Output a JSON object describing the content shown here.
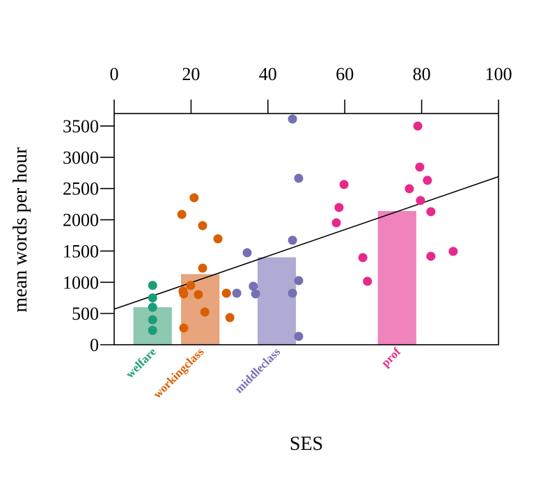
{
  "chart_data": {
    "type": "bar",
    "x_label": "SES",
    "y_label": "mean words per hour",
    "xlim": [
      0,
      100
    ],
    "xticks": [
      0,
      20,
      40,
      60,
      80,
      100
    ],
    "ylim": [
      0,
      3700
    ],
    "yticks": [
      0,
      500,
      1000,
      1500,
      2000,
      2500,
      3000,
      3500
    ],
    "bar_width": 10,
    "groups": [
      {
        "name": "welfare",
        "color": "#1b9e77",
        "bar_color": "#8dc8b0",
        "bar_x": 10,
        "bar_value": 600,
        "points": {
          "x": [
            10,
            10,
            10,
            10,
            10
          ],
          "y": [
            950,
            750,
            600,
            400,
            230
          ]
        }
      },
      {
        "name": "workingclass",
        "color": "#d95f02",
        "bar_color": "#e8a47c",
        "bar_x": 22.4,
        "bar_value": 1130,
        "points": {
          "x": [
            17.6,
            20.8,
            23,
            27,
            23,
            19.9,
            17.9,
            18.1,
            21.9,
            29.2,
            23.6,
            30.1,
            18.1
          ],
          "y": [
            2085,
            2352,
            1906,
            1695,
            1226,
            948,
            858,
            814,
            803,
            825,
            524,
            435,
            268
          ]
        }
      },
      {
        "name": "middleclass",
        "color": "#7570b3",
        "bar_color": "#afabd4",
        "bar_x": 42.3,
        "bar_value": 1400,
        "points": {
          "x": [
            46.4,
            48,
            46.4,
            34.6,
            48,
            36.2,
            31.9,
            36.8,
            46.4,
            48
          ],
          "y": [
            3612,
            2664,
            1672,
            1472,
            1026,
            936,
            825,
            814,
            825,
            134
          ]
        }
      },
      {
        "name": "prof",
        "color": "#e7298a",
        "bar_color": "#ef83bc",
        "bar_x": 73.6,
        "bar_value": 2140,
        "points": {
          "x": [
            79,
            79.5,
            59.8,
            76.8,
            81.5,
            79.7,
            58.5,
            82.4,
            57.8,
            88.2,
            82.4,
            64.7,
            65.9
          ],
          "y": [
            3500,
            2843,
            2564,
            2497,
            2631,
            2308,
            2196,
            2129,
            1951,
            1494,
            1416,
            1394,
            1015
          ]
        }
      }
    ],
    "fit_line": {
      "color": "#000000",
      "x": [
        0,
        100
      ],
      "y": [
        570,
        2690
      ]
    }
  }
}
